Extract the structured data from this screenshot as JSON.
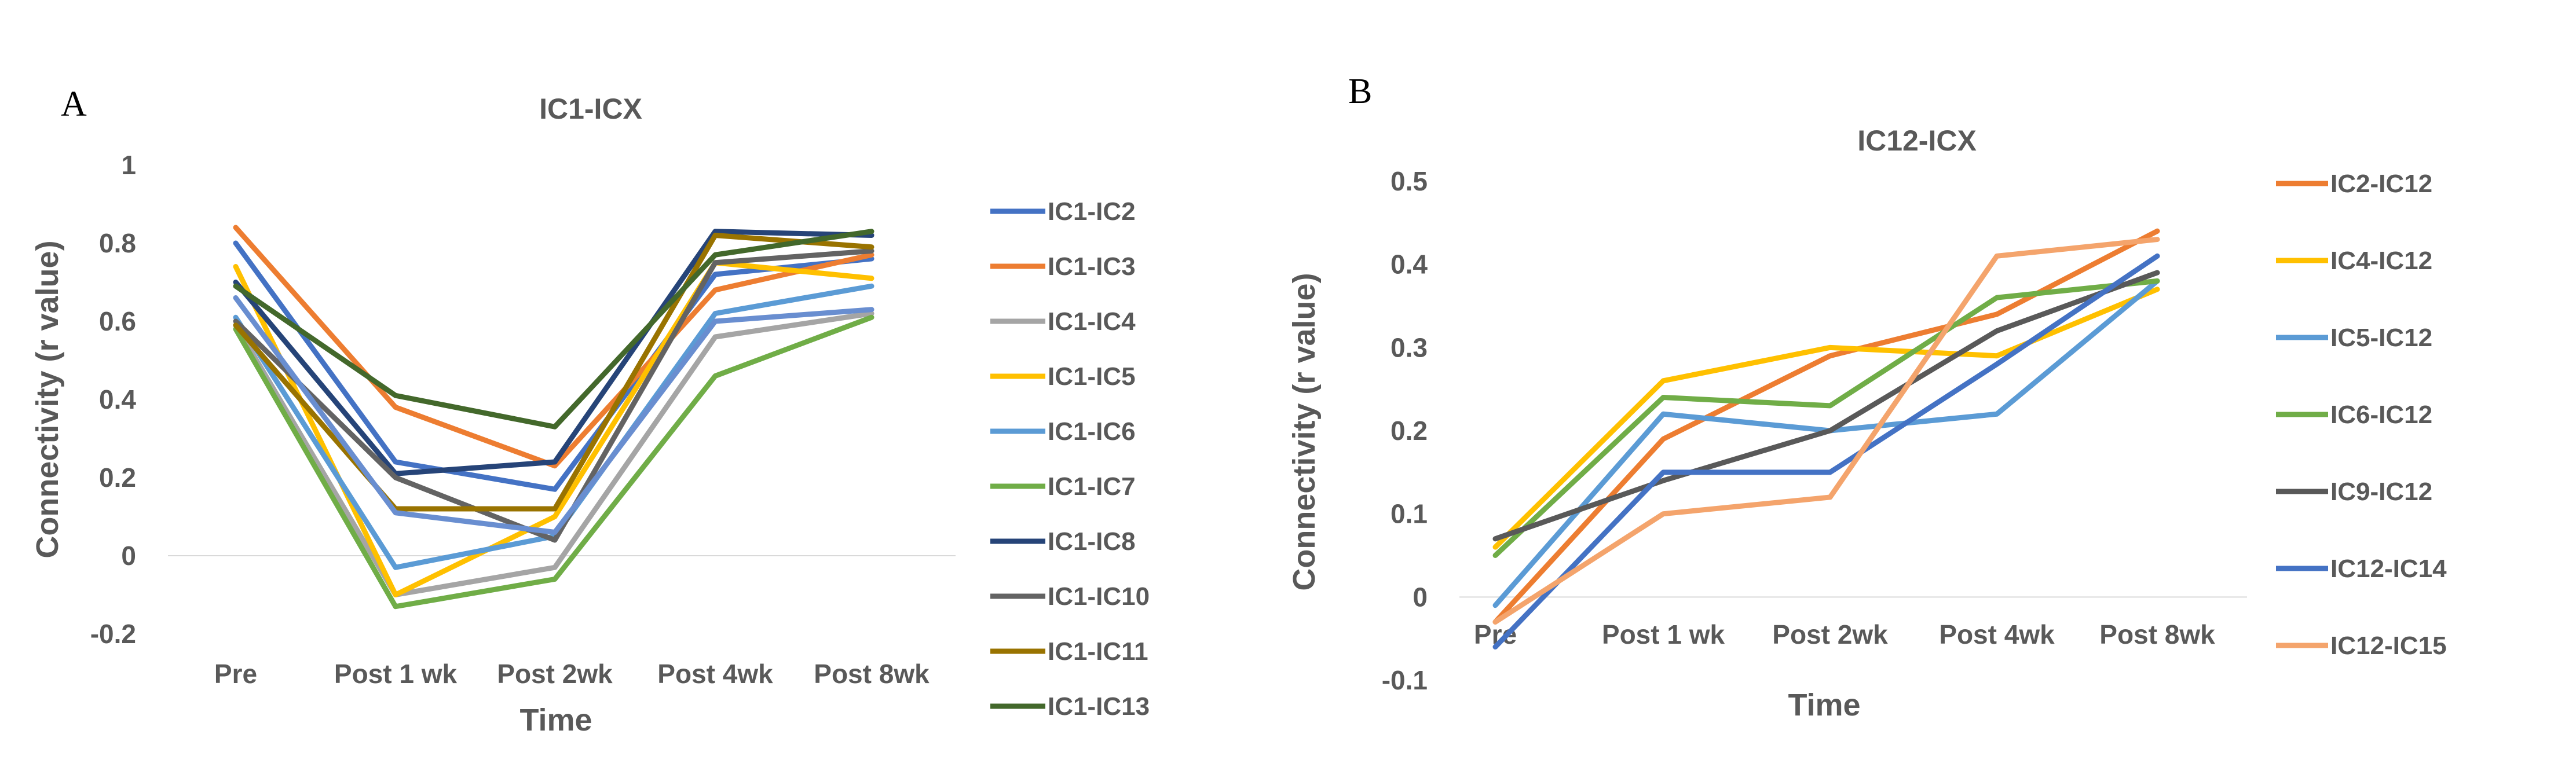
{
  "figure": {
    "panel_a_label": "A",
    "panel_b_label": "B"
  },
  "chart_data": [
    {
      "type": "line",
      "title": "IC1-ICX",
      "xlabel": "Time",
      "ylabel": "Connectivity (r value)",
      "categories": [
        "Pre",
        "Post 1 wk",
        "Post 2wk",
        "Post 4wk",
        "Post 8wk"
      ],
      "ylim": [
        -0.2,
        1
      ],
      "yticks": [
        "-0.2",
        "0",
        "0.2",
        "0.4",
        "0.6",
        "0.8",
        "1"
      ],
      "legend_position": "right",
      "series": [
        {
          "name": "IC1-IC2",
          "color": "#4472C4",
          "values": [
            0.8,
            0.24,
            0.17,
            0.72,
            0.76
          ]
        },
        {
          "name": "IC1-IC3",
          "color": "#ED7D31",
          "values": [
            0.84,
            0.38,
            0.23,
            0.68,
            0.77
          ]
        },
        {
          "name": "IC1-IC4",
          "color": "#A5A5A5",
          "values": [
            0.59,
            -0.1,
            -0.03,
            0.56,
            0.62
          ]
        },
        {
          "name": "IC1-IC5",
          "color": "#FFC000",
          "values": [
            0.74,
            -0.1,
            0.1,
            0.75,
            0.71
          ]
        },
        {
          "name": "IC1-IC6",
          "color": "#5B9BD5",
          "values": [
            0.61,
            -0.03,
            0.05,
            0.62,
            0.69
          ]
        },
        {
          "name": "IC1-IC7",
          "color": "#70AD47",
          "values": [
            0.58,
            -0.13,
            -0.06,
            0.46,
            0.61
          ]
        },
        {
          "name": "IC1-IC8",
          "color": "#264478",
          "values": [
            0.7,
            0.21,
            0.24,
            0.83,
            0.82
          ]
        },
        {
          "name": "IC1-IC10",
          "color": "#636363",
          "values": [
            0.6,
            0.2,
            0.04,
            0.75,
            0.78
          ]
        },
        {
          "name": "IC1-IC11",
          "color": "#997300",
          "values": [
            0.59,
            0.12,
            0.12,
            0.82,
            0.79
          ]
        },
        {
          "name": "IC1-IC13",
          "color": "#43682B",
          "values": [
            0.69,
            0.41,
            0.33,
            0.77,
            0.83
          ]
        },
        {
          "name": "",
          "color": "#698ED0",
          "values": [
            0.66,
            0.11,
            0.06,
            0.6,
            0.63
          ]
        }
      ]
    },
    {
      "type": "line",
      "title": "IC12-ICX",
      "xlabel": "Time",
      "ylabel": "Connectivity (r value)",
      "categories": [
        "Pre",
        "Post 1 wk",
        "Post 2wk",
        "Post 4wk",
        "Post 8wk"
      ],
      "ylim": [
        -0.1,
        0.5
      ],
      "yticks": [
        "-0.1",
        "0",
        "0.1",
        "0.2",
        "0.3",
        "0.4",
        "0.5"
      ],
      "legend_position": "right",
      "series": [
        {
          "name": "IC2-IC12",
          "color": "#ED7D31",
          "values": [
            -0.03,
            0.19,
            0.29,
            0.34,
            0.44
          ]
        },
        {
          "name": "IC4-IC12",
          "color": "#FFC000",
          "values": [
            0.06,
            0.26,
            0.3,
            0.29,
            0.37
          ]
        },
        {
          "name": "IC5-IC12",
          "color": "#5B9BD5",
          "values": [
            -0.01,
            0.22,
            0.2,
            0.22,
            0.38
          ]
        },
        {
          "name": "IC6-IC12",
          "color": "#70AD47",
          "values": [
            0.05,
            0.24,
            0.23,
            0.36,
            0.38
          ]
        },
        {
          "name": "IC9-IC12",
          "color": "#595959",
          "values": [
            0.07,
            0.14,
            0.2,
            0.32,
            0.39
          ]
        },
        {
          "name": "IC12-IC14",
          "color": "#4472C4",
          "values": [
            -0.06,
            0.15,
            0.15,
            0.28,
            0.41
          ]
        },
        {
          "name": "IC12-IC15",
          "color": "#F4A46C",
          "values": [
            -0.03,
            0.1,
            0.12,
            0.41,
            0.43
          ]
        }
      ]
    }
  ]
}
